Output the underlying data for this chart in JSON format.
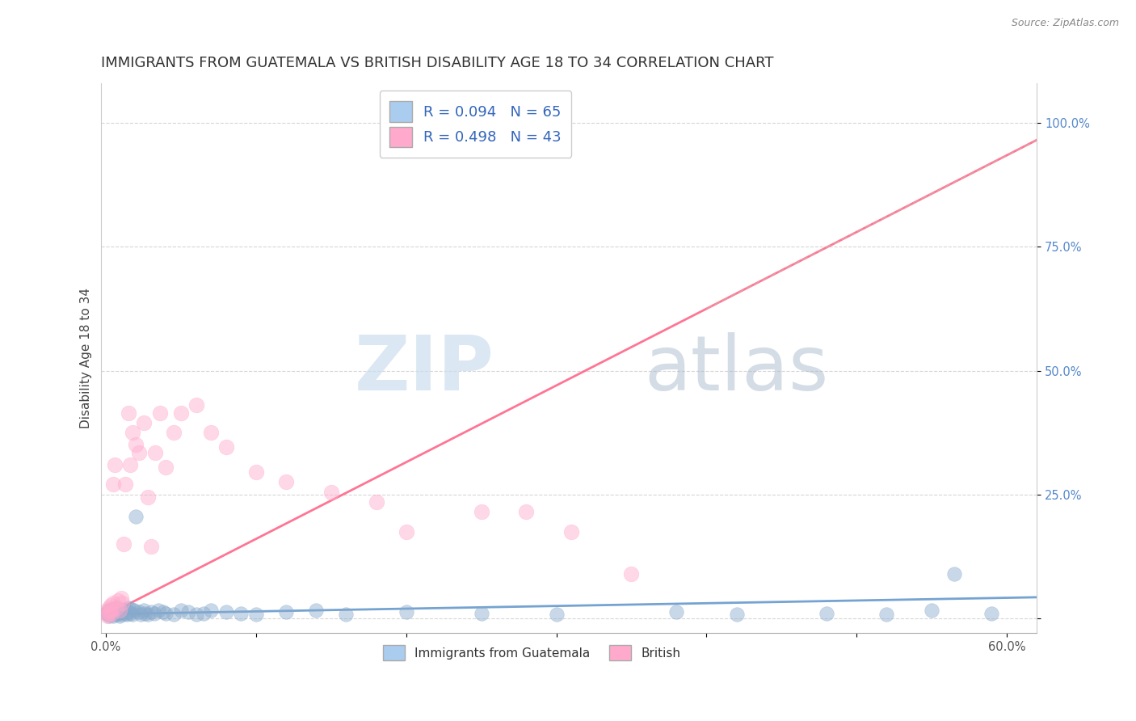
{
  "title": "IMMIGRANTS FROM GUATEMALA VS BRITISH DISABILITY AGE 18 TO 34 CORRELATION CHART",
  "source": "Source: ZipAtlas.com",
  "ylabel": "Disability Age 18 to 34",
  "xlim": [
    -0.003,
    0.62
  ],
  "ylim": [
    -0.03,
    1.08
  ],
  "xticks": [
    0.0,
    0.1,
    0.2,
    0.3,
    0.4,
    0.5,
    0.6
  ],
  "xticklabels": [
    "0.0%",
    "",
    "",
    "",
    "",
    "",
    "60.0%"
  ],
  "yticks_right": [
    0.0,
    0.25,
    0.5,
    0.75,
    1.0
  ],
  "yticklabels_right": [
    "",
    "25.0%",
    "50.0%",
    "75.0%",
    "100.0%"
  ],
  "color_blue": "#88AACC",
  "color_pink": "#FFAACC",
  "line_blue_color": "#6699CC",
  "line_pink_color": "#FF6688",
  "line_dashed_color": "#CCAAAA",
  "R_blue": 0.094,
  "N_blue": 65,
  "R_pink": 0.498,
  "N_pink": 43,
  "watermark_zip": "ZIP",
  "watermark_atlas": "atlas",
  "legend_blue_label": "Immigrants from Guatemala",
  "legend_pink_label": "British",
  "blue_x": [
    0.0005,
    0.001,
    0.0015,
    0.002,
    0.002,
    0.003,
    0.003,
    0.004,
    0.004,
    0.005,
    0.005,
    0.006,
    0.006,
    0.007,
    0.007,
    0.008,
    0.008,
    0.009,
    0.009,
    0.01,
    0.01,
    0.011,
    0.012,
    0.013,
    0.013,
    0.014,
    0.015,
    0.015,
    0.016,
    0.017,
    0.018,
    0.019,
    0.02,
    0.022,
    0.023,
    0.025,
    0.026,
    0.028,
    0.03,
    0.032,
    0.035,
    0.038,
    0.04,
    0.045,
    0.05,
    0.055,
    0.06,
    0.065,
    0.07,
    0.08,
    0.09,
    0.1,
    0.12,
    0.14,
    0.16,
    0.2,
    0.25,
    0.3,
    0.38,
    0.42,
    0.48,
    0.52,
    0.55,
    0.565,
    0.59
  ],
  "blue_y": [
    0.01,
    0.012,
    0.008,
    0.015,
    0.005,
    0.01,
    0.018,
    0.012,
    0.008,
    0.015,
    0.005,
    0.012,
    0.018,
    0.008,
    0.02,
    0.01,
    0.015,
    0.005,
    0.012,
    0.018,
    0.008,
    0.012,
    0.015,
    0.01,
    0.018,
    0.008,
    0.012,
    0.02,
    0.01,
    0.018,
    0.008,
    0.015,
    0.205,
    0.012,
    0.008,
    0.015,
    0.01,
    0.008,
    0.012,
    0.01,
    0.015,
    0.012,
    0.01,
    0.008,
    0.015,
    0.012,
    0.008,
    0.01,
    0.015,
    0.012,
    0.01,
    0.008,
    0.012,
    0.015,
    0.008,
    0.012,
    0.01,
    0.008,
    0.012,
    0.008,
    0.01,
    0.008,
    0.015,
    0.09,
    0.01
  ],
  "pink_x": [
    0.0005,
    0.001,
    0.001,
    0.002,
    0.002,
    0.003,
    0.003,
    0.004,
    0.005,
    0.005,
    0.006,
    0.007,
    0.008,
    0.009,
    0.01,
    0.011,
    0.012,
    0.013,
    0.015,
    0.016,
    0.018,
    0.02,
    0.022,
    0.025,
    0.028,
    0.03,
    0.033,
    0.036,
    0.04,
    0.045,
    0.05,
    0.06,
    0.07,
    0.08,
    0.1,
    0.12,
    0.15,
    0.18,
    0.2,
    0.25,
    0.28,
    0.31,
    0.35
  ],
  "pink_y": [
    0.01,
    0.015,
    0.005,
    0.02,
    0.01,
    0.015,
    0.025,
    0.01,
    0.27,
    0.03,
    0.31,
    0.02,
    0.035,
    0.015,
    0.04,
    0.03,
    0.15,
    0.27,
    0.415,
    0.31,
    0.375,
    0.35,
    0.335,
    0.395,
    0.245,
    0.145,
    0.335,
    0.415,
    0.305,
    0.375,
    0.415,
    0.43,
    0.375,
    0.345,
    0.295,
    0.275,
    0.255,
    0.235,
    0.175,
    0.215,
    0.215,
    0.175,
    0.09
  ],
  "title_fontsize": 13,
  "ylabel_fontsize": 11,
  "tick_fontsize": 10.5,
  "legend_rn_fontsize": 13,
  "legend_series_fontsize": 11
}
